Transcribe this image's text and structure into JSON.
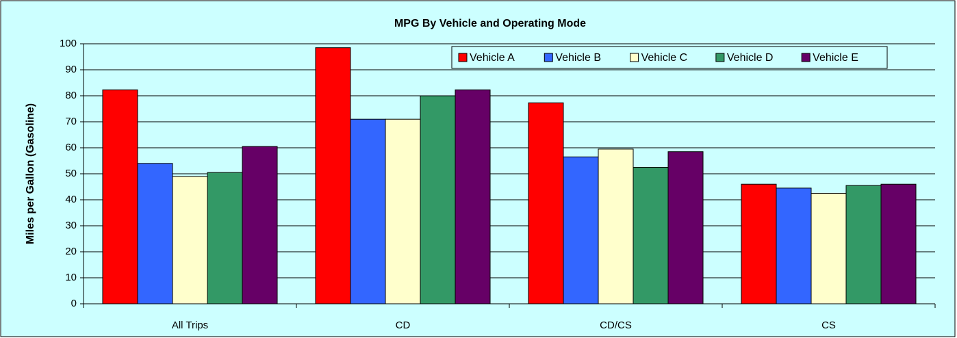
{
  "chart_data": {
    "type": "bar",
    "title": "MPG By Vehicle and Operating Mode",
    "y_label": "Miles per Gallon (Gasoline)",
    "categories": [
      "All Trips",
      "CD",
      "CD/CS",
      "CS"
    ],
    "series": [
      {
        "name": "Vehicle A",
        "color": "#ff0000",
        "values": [
          82.3,
          98.5,
          77.3,
          46
        ]
      },
      {
        "name": "Vehicle B",
        "color": "#3366ff",
        "values": [
          54,
          71,
          56.5,
          44.5
        ]
      },
      {
        "name": "Vehicle C",
        "color": "#ffffcc",
        "values": [
          49,
          71,
          59.5,
          42.5
        ]
      },
      {
        "name": "Vehicle D",
        "color": "#339966",
        "values": [
          50.5,
          80,
          52.5,
          45.5
        ]
      },
      {
        "name": "Vehicle E",
        "color": "#660066",
        "values": [
          60.5,
          82.3,
          58.5,
          46
        ]
      }
    ],
    "ylim": [
      0,
      100
    ],
    "yticks": [
      0,
      10,
      20,
      30,
      40,
      50,
      60,
      70,
      80,
      90,
      100
    ],
    "grid": true,
    "legend": "top-right"
  }
}
